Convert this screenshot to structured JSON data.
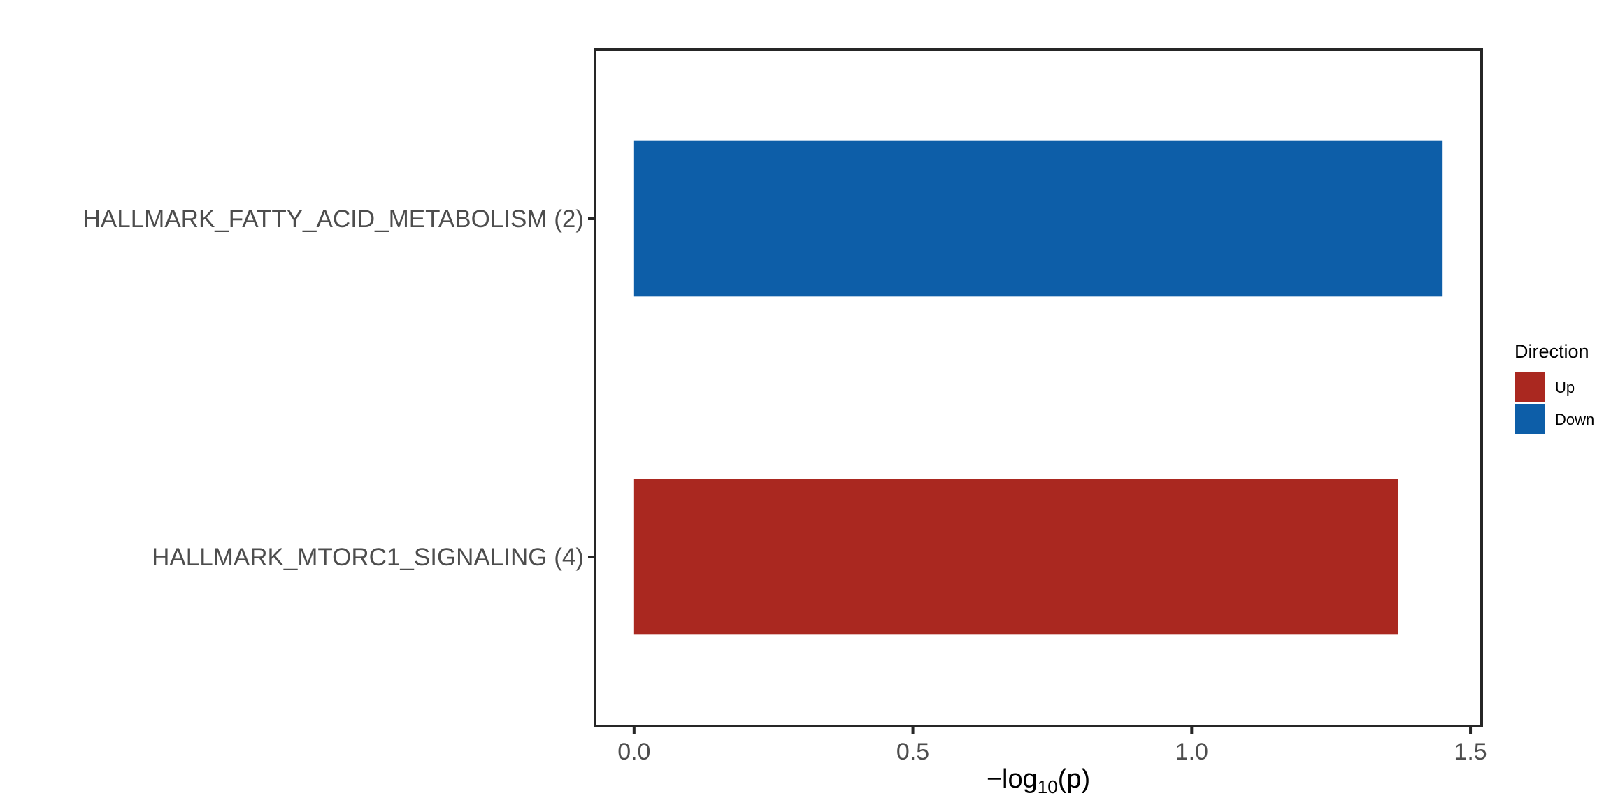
{
  "chart_data": {
    "type": "bar",
    "orientation": "horizontal",
    "categories": [
      "HALLMARK_FATTY_ACID_METABOLISM (2)",
      "HALLMARK_MTORC1_SIGNALING (4)"
    ],
    "values": [
      1.45,
      1.37
    ],
    "directions": [
      "Down",
      "Up"
    ],
    "xlabel_prefix": "−log",
    "xlabel_sub": "10",
    "xlabel_suffix": "(p)",
    "xlim": [
      -0.07,
      1.52
    ],
    "xticks": [
      0.0,
      0.5,
      1.0,
      1.5
    ],
    "xtick_labels": [
      "0.0",
      "0.5",
      "1.0",
      "1.5"
    ],
    "grid": false,
    "legend": {
      "title": "Direction",
      "position": "right",
      "entries": [
        {
          "label": "Up",
          "color": "#AA2820"
        },
        {
          "label": "Down",
          "color": "#0D5EA8"
        }
      ]
    },
    "colors": {
      "Up": "#AA2820",
      "Down": "#0D5EA8"
    }
  }
}
